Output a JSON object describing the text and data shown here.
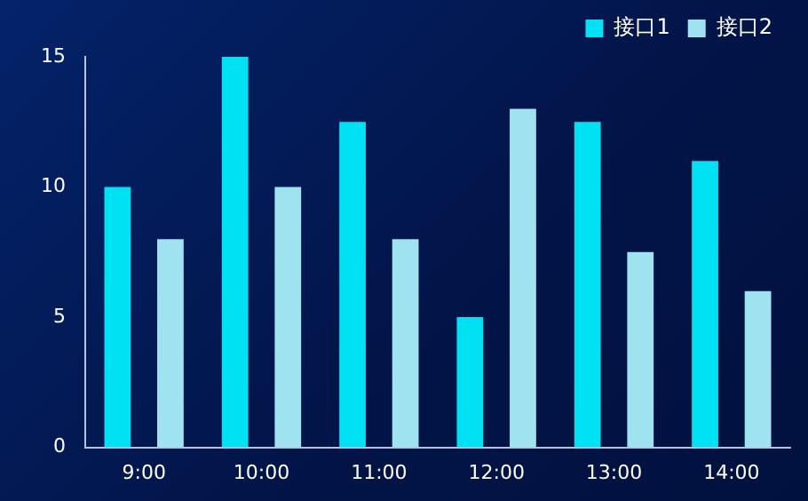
{
  "chart_data": {
    "type": "bar",
    "categories": [
      "9:00",
      "10:00",
      "11:00",
      "12:00",
      "13:00",
      "14:00"
    ],
    "series": [
      {
        "name": "接口1",
        "color": "#00e1f4",
        "values": [
          10,
          15,
          12.5,
          5,
          12.5,
          11
        ]
      },
      {
        "name": "接口2",
        "color": "#9ee3ef",
        "values": [
          8,
          10,
          8,
          13,
          7.5,
          6
        ]
      }
    ],
    "ylim": [
      0,
      15
    ],
    "yticks": [
      0,
      5,
      10,
      15
    ],
    "grid": false,
    "legend": "top right"
  }
}
